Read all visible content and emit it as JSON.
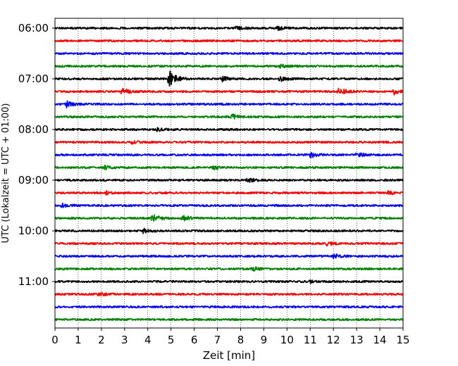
{
  "chart_data": {
    "type": "line",
    "title": "",
    "xlabel": "Zeit  [min]",
    "ylabel": "UTC (Lokalzeit = UTC + 01:00)",
    "xlim": [
      0,
      15
    ],
    "x_ticks": [
      "0",
      "1",
      "2",
      "3",
      "4",
      "5",
      "6",
      "7",
      "8",
      "9",
      "10",
      "11",
      "12",
      "13",
      "14",
      "15"
    ],
    "y_ticks": [
      "06:00",
      "07:00",
      "08:00",
      "09:00",
      "10:00",
      "11:00"
    ],
    "grid": "vertical-dotted",
    "trace_interval_min": 15,
    "start_time": "06:00",
    "color_cycle": [
      "#000000",
      "#ff0000",
      "#0000ff",
      "#008000"
    ],
    "series": [
      {
        "start": "06:00",
        "color": "#000000",
        "events": [
          {
            "t": 7.8,
            "amp": 2.5
          },
          {
            "t": 9.6,
            "amp": 2.5
          }
        ]
      },
      {
        "start": "06:15",
        "color": "#ff0000",
        "events": []
      },
      {
        "start": "06:30",
        "color": "#0000ff",
        "events": []
      },
      {
        "start": "06:45",
        "color": "#008000",
        "events": [
          {
            "t": 9.7,
            "amp": 2.5
          }
        ]
      },
      {
        "start": "07:00",
        "color": "#000000",
        "events": [
          {
            "t": 4.9,
            "amp": 14
          },
          {
            "t": 7.2,
            "amp": 3.5
          },
          {
            "t": 9.7,
            "amp": 3.5
          }
        ]
      },
      {
        "start": "07:15",
        "color": "#ff0000",
        "events": [
          {
            "t": 2.9,
            "amp": 5
          },
          {
            "t": 12.2,
            "amp": 6
          },
          {
            "t": 14.6,
            "amp": 4
          }
        ]
      },
      {
        "start": "07:30",
        "color": "#0000ff",
        "events": [
          {
            "t": 0.5,
            "amp": 4
          }
        ]
      },
      {
        "start": "07:45",
        "color": "#008000",
        "events": [
          {
            "t": 7.6,
            "amp": 4
          }
        ]
      },
      {
        "start": "08:00",
        "color": "#000000",
        "events": [
          {
            "t": 4.4,
            "amp": 2
          }
        ]
      },
      {
        "start": "08:15",
        "color": "#ff0000",
        "events": [
          {
            "t": 3.3,
            "amp": 2
          }
        ]
      },
      {
        "start": "08:30",
        "color": "#0000ff",
        "events": [
          {
            "t": 11.0,
            "amp": 4
          },
          {
            "t": 13.0,
            "amp": 3
          }
        ]
      },
      {
        "start": "08:45",
        "color": "#008000",
        "events": [
          {
            "t": 2.1,
            "amp": 3
          },
          {
            "t": 6.8,
            "amp": 2.5
          }
        ]
      },
      {
        "start": "09:00",
        "color": "#000000",
        "events": [
          {
            "t": 8.3,
            "amp": 3
          }
        ]
      },
      {
        "start": "09:15",
        "color": "#ff0000",
        "events": [
          {
            "t": 2.2,
            "amp": 2
          },
          {
            "t": 14.3,
            "amp": 2.5
          }
        ]
      },
      {
        "start": "09:30",
        "color": "#0000ff",
        "events": [
          {
            "t": 0.3,
            "amp": 2.5
          }
        ]
      },
      {
        "start": "09:45",
        "color": "#008000",
        "events": [
          {
            "t": 4.2,
            "amp": 5
          },
          {
            "t": 5.5,
            "amp": 4
          }
        ]
      },
      {
        "start": "10:00",
        "color": "#000000",
        "events": [
          {
            "t": 3.8,
            "amp": 3
          }
        ]
      },
      {
        "start": "10:15",
        "color": "#ff0000",
        "events": [
          {
            "t": 11.7,
            "amp": 3
          }
        ]
      },
      {
        "start": "10:30",
        "color": "#0000ff",
        "events": [
          {
            "t": 12.0,
            "amp": 3
          }
        ]
      },
      {
        "start": "10:45",
        "color": "#008000",
        "events": [
          {
            "t": 8.5,
            "amp": 2.5
          }
        ]
      },
      {
        "start": "11:00",
        "color": "#000000",
        "events": [
          {
            "t": 11.0,
            "amp": 2
          }
        ]
      },
      {
        "start": "11:15",
        "color": "#ff0000",
        "events": [
          {
            "t": 1.9,
            "amp": 3.5
          }
        ]
      },
      {
        "start": "11:30",
        "color": "#0000ff",
        "events": []
      },
      {
        "start": "11:45",
        "color": "#008000",
        "events": []
      }
    ]
  }
}
